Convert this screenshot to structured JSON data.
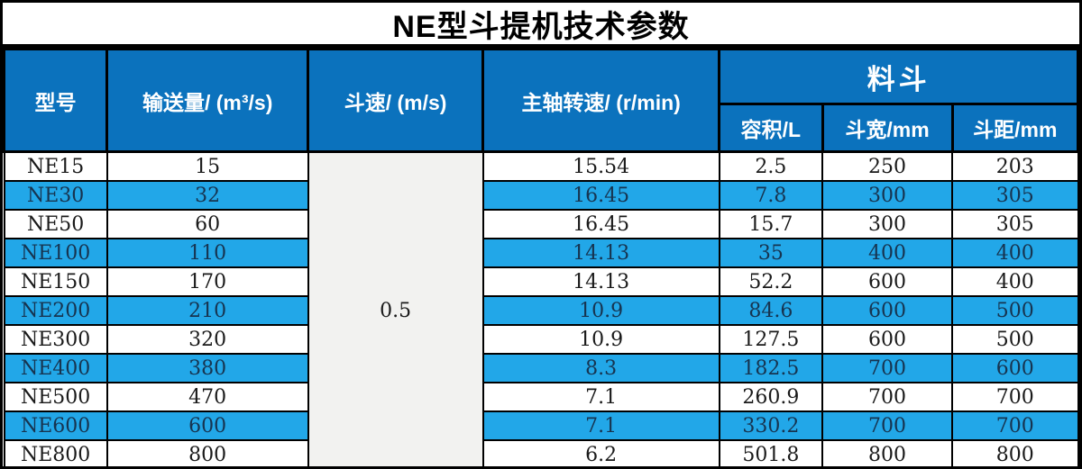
{
  "title": "NE型斗提机技术参数",
  "table": {
    "headers": {
      "model": "型号",
      "capacity": "输送量/ (m³/s)",
      "bucket_speed": "斗速/ (m/s)",
      "shaft_speed": "主轴转速/ (r/min)",
      "bucket_group": "料斗",
      "volume": "容积/L",
      "bucket_width": "斗宽/mm",
      "bucket_pitch": "斗距/mm"
    },
    "bucket_speed_value": "0.5",
    "rows": [
      {
        "model": "NE15",
        "capacity": "15",
        "shaft_speed": "15.54",
        "volume": "2.5",
        "bucket_width": "250",
        "bucket_pitch": "203"
      },
      {
        "model": "NE30",
        "capacity": "32",
        "shaft_speed": "16.45",
        "volume": "7.8",
        "bucket_width": "300",
        "bucket_pitch": "305"
      },
      {
        "model": "NE50",
        "capacity": "60",
        "shaft_speed": "16.45",
        "volume": "15.7",
        "bucket_width": "300",
        "bucket_pitch": "305"
      },
      {
        "model": "NE100",
        "capacity": "110",
        "shaft_speed": "14.13",
        "volume": "35",
        "bucket_width": "400",
        "bucket_pitch": "400"
      },
      {
        "model": "NE150",
        "capacity": "170",
        "shaft_speed": "14.13",
        "volume": "52.2",
        "bucket_width": "600",
        "bucket_pitch": "400"
      },
      {
        "model": "NE200",
        "capacity": "210",
        "shaft_speed": "10.9",
        "volume": "84.6",
        "bucket_width": "600",
        "bucket_pitch": "500"
      },
      {
        "model": "NE300",
        "capacity": "320",
        "shaft_speed": "10.9",
        "volume": "127.5",
        "bucket_width": "600",
        "bucket_pitch": "500"
      },
      {
        "model": "NE400",
        "capacity": "380",
        "shaft_speed": "8.3",
        "volume": "182.5",
        "bucket_width": "700",
        "bucket_pitch": "600"
      },
      {
        "model": "NE500",
        "capacity": "470",
        "shaft_speed": "7.1",
        "volume": "260.9",
        "bucket_width": "700",
        "bucket_pitch": "700"
      },
      {
        "model": "NE600",
        "capacity": "600",
        "shaft_speed": "7.1",
        "volume": "330.2",
        "bucket_width": "700",
        "bucket_pitch": "700"
      },
      {
        "model": "NE800",
        "capacity": "800",
        "shaft_speed": "6.2",
        "volume": "501.8",
        "bucket_width": "800",
        "bucket_pitch": "800"
      }
    ],
    "row_stripe_pattern": [
      "white",
      "blue"
    ]
  },
  "colors": {
    "header_blue": "#0b72bd",
    "row_blue": "#22a7e8",
    "row_white": "#ffffff",
    "merged_gray": "#f2f2f0",
    "border_black": "#000000",
    "blue_row_text": "#173450"
  }
}
